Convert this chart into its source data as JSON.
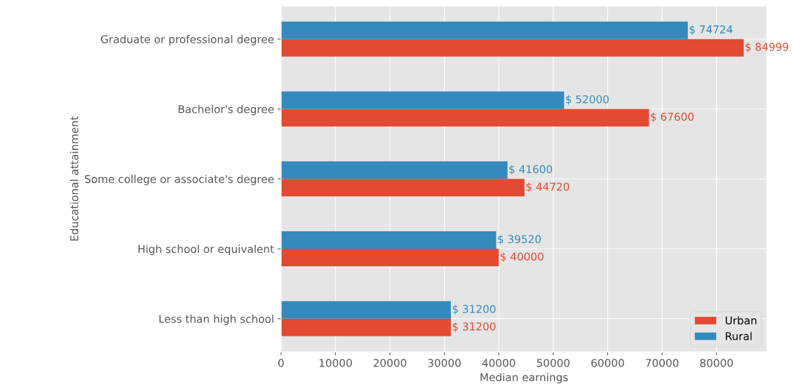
{
  "chart_data": {
    "type": "bar",
    "orientation": "horizontal",
    "categories": [
      "Graduate or professional degree",
      "Bachelor's degree",
      "Some college or associate's degree",
      "High school or equivalent",
      "Less than high school"
    ],
    "series": [
      {
        "name": "Urban",
        "color": "#e24a33",
        "values": [
          84999,
          67600,
          44720,
          40000,
          31200
        ],
        "value_labels": [
          "$ 84999",
          "$ 67600",
          "$ 44720",
          "$ 40000",
          "$ 31200"
        ]
      },
      {
        "name": "Rural",
        "color": "#348abd",
        "values": [
          74724,
          52000,
          41600,
          39520,
          31200
        ],
        "value_labels": [
          "$ 74724",
          "$ 52000",
          "$ 41600",
          "$ 39520",
          "$ 31200"
        ]
      }
    ],
    "xlabel": "Median earnings",
    "ylabel": "Educational attainment",
    "xlim": [
      0,
      89249
    ],
    "xticks": [
      0,
      10000,
      20000,
      30000,
      40000,
      50000,
      60000,
      70000,
      80000
    ],
    "grid": true,
    "legend": "bottom right"
  }
}
